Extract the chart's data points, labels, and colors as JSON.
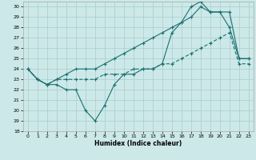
{
  "xlabel": "Humidex (Indice chaleur)",
  "bg_color": "#cce8e8",
  "line_color": "#1a7070",
  "grid_color": "#aacccc",
  "x": [
    0,
    1,
    2,
    3,
    4,
    5,
    6,
    7,
    8,
    9,
    10,
    11,
    12,
    13,
    14,
    15,
    16,
    17,
    18,
    19,
    20,
    21,
    22,
    23
  ],
  "line1": [
    24,
    23,
    22.5,
    22.5,
    22,
    22,
    20,
    19,
    20.5,
    22.5,
    23.5,
    23.5,
    24,
    24,
    24.5,
    27.5,
    28.5,
    30,
    30.5,
    29.5,
    29.5,
    28,
    25,
    25
  ],
  "line2": [
    24,
    23,
    22.5,
    23,
    23,
    23,
    23,
    23,
    23.5,
    23.5,
    23.5,
    24,
    24,
    24,
    24.5,
    24.5,
    25,
    25.5,
    26,
    26.5,
    27,
    27.5,
    24.5,
    24.5
  ],
  "line3": [
    24,
    23,
    22.5,
    23,
    23.5,
    24,
    24,
    24,
    24.5,
    25,
    25.5,
    26,
    26.5,
    27,
    27.5,
    28,
    28.5,
    29,
    30,
    29.5,
    29.5,
    29.5,
    25,
    25
  ],
  "ylim": [
    18,
    30.5
  ],
  "yticks": [
    18,
    19,
    20,
    21,
    22,
    23,
    24,
    25,
    26,
    27,
    28,
    29,
    30
  ],
  "xlim": [
    -0.5,
    23.5
  ],
  "xticks": [
    0,
    1,
    2,
    3,
    4,
    5,
    6,
    7,
    8,
    9,
    10,
    11,
    12,
    13,
    14,
    15,
    16,
    17,
    18,
    19,
    20,
    21,
    22,
    23
  ],
  "xtick_labels": [
    "0",
    "1",
    "2",
    "3",
    "4",
    "5",
    "6",
    "7",
    "8",
    "9",
    "10",
    "11",
    "12",
    "13",
    "14",
    "15",
    "16",
    "17",
    "18",
    "19",
    "20",
    "21",
    "22",
    "23"
  ]
}
